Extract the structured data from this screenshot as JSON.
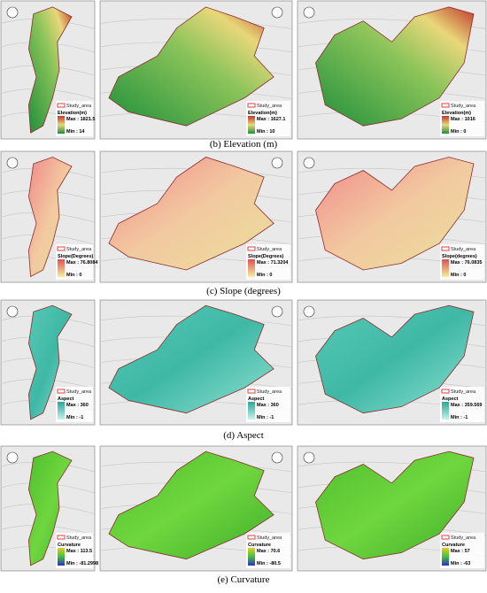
{
  "rows": [
    {
      "caption": "(b) Elevation (m)",
      "panels": [
        {
          "legend": {
            "area": "Study_area",
            "layer": "Elevation(m)",
            "max": "Max : 1821.5",
            "min": "Min : 14"
          }
        },
        {
          "legend": {
            "area": "Study_area",
            "layer": "Elevation(m)",
            "max": "Max : 1627.1",
            "min": "Min : 10"
          }
        },
        {
          "legend": {
            "area": "Study_area",
            "layer": "Elevation(m)",
            "max": "Max : 1016",
            "min": "Min : 0"
          }
        }
      ]
    },
    {
      "caption": "(c) Slope (degrees)",
      "panels": [
        {
          "legend": {
            "area": "Study_area",
            "layer": "Slope(Degrees)",
            "max": "Max : 76.8084",
            "min": "Min : 0"
          }
        },
        {
          "legend": {
            "area": "Study_area",
            "layer": "Slope(Degrees)",
            "max": "Max : 71.3204",
            "min": "Min : 0"
          }
        },
        {
          "legend": {
            "area": "Study_area",
            "layer": "Slope(degrees)",
            "max": "Max : 76.0835",
            "min": "Min : 0"
          }
        }
      ]
    },
    {
      "caption": "(d) Aspect",
      "panels": [
        {
          "legend": {
            "area": "Study_area",
            "layer": "Aspect",
            "max": "Max : 360",
            "min": "Min : -1"
          }
        },
        {
          "legend": {
            "area": "Study_area",
            "layer": "Aspect",
            "max": "Max : 360",
            "min": "Min : -1"
          }
        },
        {
          "legend": {
            "area": "Study_area",
            "layer": "Aspect",
            "max": "Max : 359.569",
            "min": "Min : -1"
          }
        }
      ]
    },
    {
      "caption": "(e) Curvature",
      "panels": [
        {
          "legend": {
            "area": "Study_area",
            "layer": "Curvature",
            "max": "Max : 113.5",
            "min": "Min : -81.2998"
          }
        },
        {
          "legend": {
            "area": "Study_area",
            "layer": "Curvature",
            "max": "Max : 70.6",
            "min": "Min : -80.5"
          }
        },
        {
          "legend": {
            "area": "Study_area",
            "layer": "Curvature",
            "max": "Max : 57",
            "min": "Min : -63"
          }
        }
      ]
    }
  ]
}
